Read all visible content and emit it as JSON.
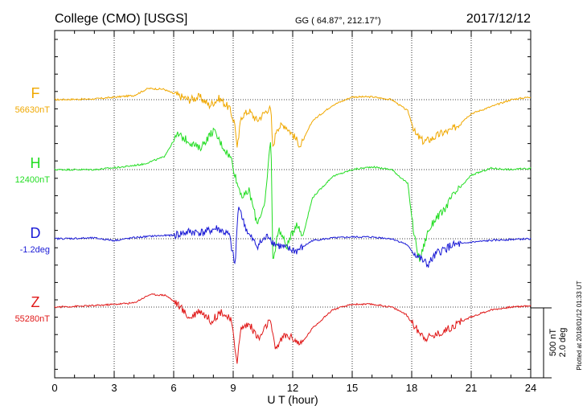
{
  "chart_data": {
    "type": "line",
    "title_left": "College (CMO)  [USGS]",
    "title_center": "GG ( 64.87°, 212.17°)",
    "date": "2017/12/12",
    "xlabel": "U T (hour)",
    "xlim": [
      0,
      24
    ],
    "xticks": [
      "0",
      "3",
      "6",
      "9",
      "12",
      "15",
      "18",
      "21",
      "24"
    ],
    "grid": true,
    "scale_labels": [
      "500 nT",
      "2.0 deg"
    ],
    "plotted_note": "Plotted at 2018/01/12 01:33 UT",
    "series": [
      {
        "name": "F",
        "baseline": "56630nT",
        "color": "#f0a800",
        "unit": "nT",
        "x": [
          0,
          2,
          4,
          4.7,
          5.5,
          6.2,
          6.8,
          7.3,
          7.8,
          8.3,
          8.8,
          9.1,
          9.2,
          9.4,
          9.8,
          10.2,
          10.8,
          10.9,
          11.0,
          11.2,
          11.6,
          12.0,
          12.4,
          13.0,
          14.0,
          15.0,
          16.0,
          17.0,
          17.8,
          18.2,
          18.6,
          19.0,
          19.5,
          20.0,
          21.0,
          22.0,
          23.0,
          24.0
        ],
        "y": [
          0,
          5,
          30,
          80,
          75,
          30,
          0,
          20,
          -40,
          10,
          -60,
          -180,
          -360,
          -120,
          -80,
          -150,
          -60,
          -80,
          -350,
          -200,
          -180,
          -250,
          -330,
          -150,
          -40,
          20,
          20,
          0,
          -80,
          -250,
          -300,
          -280,
          -240,
          -220,
          -100,
          -50,
          0,
          20
        ]
      },
      {
        "name": "H",
        "baseline": "12400nT",
        "color": "#22dd22",
        "unit": "nT",
        "x": [
          0,
          2,
          3.5,
          4.5,
          5.5,
          6.2,
          6.8,
          7.3,
          8.0,
          8.5,
          8.9,
          9.2,
          9.5,
          9.8,
          10.2,
          10.6,
          10.9,
          11.0,
          11.3,
          11.7,
          12.2,
          12.5,
          13.0,
          14.0,
          15.0,
          16.0,
          17.0,
          17.8,
          18.1,
          18.4,
          18.8,
          19.2,
          19.6,
          20.0,
          21.0,
          22.0,
          23.0,
          24.0
        ],
        "y": [
          0,
          0,
          20,
          40,
          90,
          250,
          200,
          150,
          280,
          160,
          80,
          -100,
          -200,
          -150,
          -380,
          -250,
          250,
          -650,
          -420,
          -550,
          -380,
          -480,
          -200,
          -50,
          0,
          20,
          0,
          -100,
          -450,
          -650,
          -450,
          -350,
          -300,
          -200,
          -40,
          10,
          0,
          10
        ]
      },
      {
        "name": "D",
        "baseline": "-1.2deg",
        "color": "#1a1ad6",
        "unit": "deg",
        "x": [
          0,
          2,
          3,
          4,
          5,
          6,
          6.8,
          7.5,
          8.2,
          8.8,
          9.1,
          9.2,
          9.3,
          9.5,
          9.8,
          10.2,
          10.8,
          11.0,
          11.3,
          11.8,
          12.2,
          13.0,
          14.0,
          15.0,
          16.0,
          17.0,
          17.7,
          18.1,
          18.5,
          18.8,
          19.3,
          20.0,
          21.0,
          22.0,
          23.0,
          24.0
        ],
        "y": [
          0,
          0.02,
          -0.05,
          0.03,
          0.08,
          0.1,
          0.2,
          0.18,
          0.3,
          0.1,
          -0.8,
          0.4,
          1.0,
          0.5,
          0.1,
          -0.2,
          0.1,
          -0.1,
          -0.2,
          -0.3,
          -0.35,
          -0.05,
          0.02,
          0.05,
          0.05,
          0.0,
          -0.15,
          -0.4,
          -0.6,
          -0.75,
          -0.4,
          -0.2,
          -0.1,
          -0.05,
          -0.02,
          0.0
        ]
      },
      {
        "name": "Z",
        "baseline": "55280nT",
        "color": "#e01818",
        "unit": "nT",
        "x": [
          0,
          2,
          4,
          4.8,
          5.6,
          6.2,
          6.8,
          7.3,
          7.9,
          8.4,
          8.9,
          9.1,
          9.2,
          9.4,
          9.8,
          10.3,
          10.8,
          10.95,
          11.1,
          11.6,
          12.0,
          12.4,
          13.0,
          14.0,
          15.0,
          16.0,
          17.0,
          17.7,
          18.2,
          18.7,
          19.2,
          19.8,
          20.4,
          21.0,
          22.0,
          23.0,
          24.0
        ],
        "y": [
          0,
          10,
          30,
          90,
          85,
          20,
          -80,
          -20,
          -100,
          -30,
          -100,
          -300,
          -380,
          -150,
          -120,
          -230,
          -100,
          -150,
          -300,
          -200,
          -220,
          -270,
          -150,
          -20,
          20,
          20,
          0,
          -50,
          -150,
          -220,
          -200,
          -160,
          -110,
          -70,
          -20,
          0,
          10
        ]
      }
    ]
  }
}
